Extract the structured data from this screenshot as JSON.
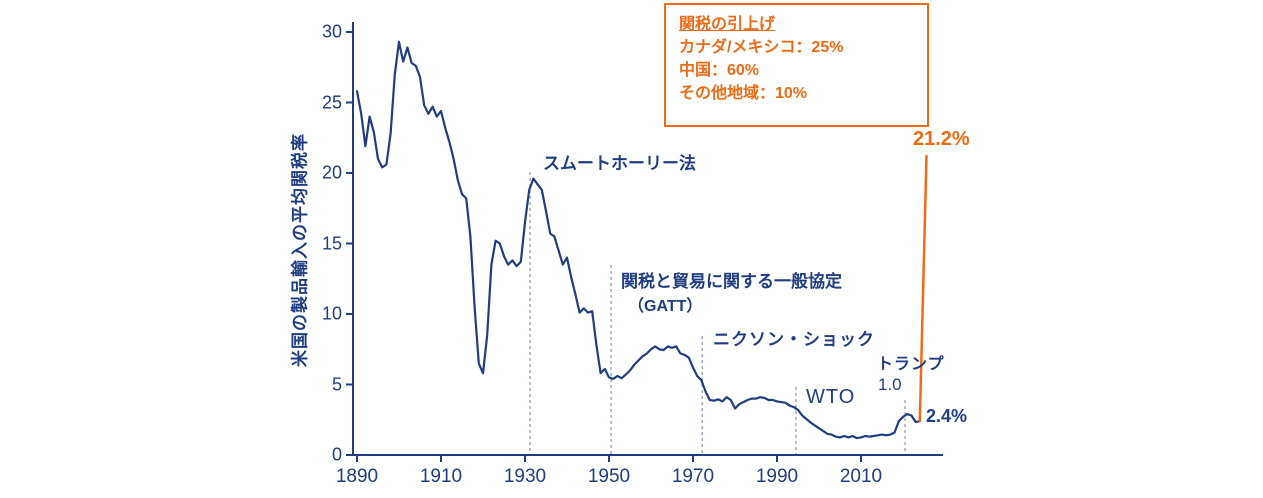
{
  "chart_data": {
    "type": "line",
    "title": "",
    "xlabel": "",
    "ylabel": "米国の製品輸入の平均関税率",
    "x_ticks": [
      "1890",
      "1910",
      "1930",
      "1950",
      "1970",
      "1990",
      "2010"
    ],
    "x_tick_years": [
      1890,
      1910,
      1930,
      1950,
      1970,
      1990,
      2010
    ],
    "y_ticks": [
      "0",
      "5",
      "10",
      "15",
      "20",
      "25",
      "30"
    ],
    "y_tick_values": [
      0,
      5,
      10,
      15,
      20,
      25,
      30
    ],
    "xlim": [
      1890,
      2026
    ],
    "ylim": [
      0,
      30
    ],
    "grid": false,
    "legend_position": "none",
    "series": [
      {
        "id": "historical-average-tariff-rate",
        "color": "#1F3D80",
        "points": [
          [
            1890,
            25.8
          ],
          [
            1891,
            24.2
          ],
          [
            1892,
            21.9
          ],
          [
            1893,
            24.0
          ],
          [
            1894,
            22.9
          ],
          [
            1895,
            21.0
          ],
          [
            1896,
            20.4
          ],
          [
            1897,
            20.6
          ],
          [
            1898,
            22.8
          ],
          [
            1899,
            27.0
          ],
          [
            1900,
            29.3
          ],
          [
            1901,
            27.9
          ],
          [
            1902,
            28.9
          ],
          [
            1903,
            27.8
          ],
          [
            1904,
            27.6
          ],
          [
            1905,
            26.8
          ],
          [
            1906,
            24.8
          ],
          [
            1907,
            24.2
          ],
          [
            1908,
            24.7
          ],
          [
            1909,
            24.0
          ],
          [
            1910,
            24.4
          ],
          [
            1911,
            23.2
          ],
          [
            1912,
            22.2
          ],
          [
            1913,
            21.0
          ],
          [
            1914,
            19.5
          ],
          [
            1915,
            18.5
          ],
          [
            1916,
            18.2
          ],
          [
            1917,
            15.5
          ],
          [
            1918,
            10.5
          ],
          [
            1919,
            6.5
          ],
          [
            1920,
            5.8
          ],
          [
            1921,
            8.5
          ],
          [
            1922,
            13.5
          ],
          [
            1923,
            15.2
          ],
          [
            1924,
            15.0
          ],
          [
            1925,
            14.1
          ],
          [
            1926,
            13.5
          ],
          [
            1927,
            13.8
          ],
          [
            1928,
            13.4
          ],
          [
            1929,
            13.7
          ],
          [
            1930,
            16.5
          ],
          [
            1931,
            18.8
          ],
          [
            1932,
            19.6
          ],
          [
            1933,
            19.2
          ],
          [
            1934,
            18.8
          ],
          [
            1935,
            17.3
          ],
          [
            1936,
            15.7
          ],
          [
            1937,
            15.5
          ],
          [
            1938,
            14.5
          ],
          [
            1939,
            13.5
          ],
          [
            1940,
            14.0
          ],
          [
            1941,
            12.6
          ],
          [
            1942,
            11.4
          ],
          [
            1943,
            10.1
          ],
          [
            1944,
            10.4
          ],
          [
            1945,
            10.1
          ],
          [
            1946,
            10.2
          ],
          [
            1947,
            7.8
          ],
          [
            1948,
            5.8
          ],
          [
            1949,
            6.1
          ],
          [
            1950,
            5.5
          ],
          [
            1951,
            5.4
          ],
          [
            1952,
            5.6
          ],
          [
            1953,
            5.45
          ],
          [
            1954,
            5.7
          ],
          [
            1955,
            6.0
          ],
          [
            1956,
            6.4
          ],
          [
            1957,
            6.7
          ],
          [
            1958,
            7.0
          ],
          [
            1959,
            7.2
          ],
          [
            1960,
            7.5
          ],
          [
            1961,
            7.7
          ],
          [
            1962,
            7.5
          ],
          [
            1963,
            7.45
          ],
          [
            1964,
            7.7
          ],
          [
            1965,
            7.6
          ],
          [
            1966,
            7.7
          ],
          [
            1967,
            7.2
          ],
          [
            1968,
            7.1
          ],
          [
            1969,
            6.9
          ],
          [
            1970,
            6.2
          ],
          [
            1971,
            5.6
          ],
          [
            1972,
            5.3
          ],
          [
            1973,
            4.5
          ],
          [
            1974,
            3.9
          ],
          [
            1975,
            3.85
          ],
          [
            1976,
            3.95
          ],
          [
            1977,
            3.8
          ],
          [
            1978,
            4.1
          ],
          [
            1979,
            3.9
          ],
          [
            1980,
            3.3
          ],
          [
            1981,
            3.6
          ],
          [
            1982,
            3.75
          ],
          [
            1983,
            3.9
          ],
          [
            1984,
            4.0
          ],
          [
            1985,
            4.0
          ],
          [
            1986,
            4.1
          ],
          [
            1987,
            4.05
          ],
          [
            1988,
            3.9
          ],
          [
            1989,
            3.9
          ],
          [
            1990,
            3.8
          ],
          [
            1991,
            3.75
          ],
          [
            1992,
            3.7
          ],
          [
            1993,
            3.5
          ],
          [
            1994,
            3.4
          ],
          [
            1995,
            3.2
          ],
          [
            1996,
            2.8
          ],
          [
            1997,
            2.55
          ],
          [
            1998,
            2.3
          ],
          [
            1999,
            2.1
          ],
          [
            2000,
            1.9
          ],
          [
            2001,
            1.7
          ],
          [
            2002,
            1.5
          ],
          [
            2003,
            1.45
          ],
          [
            2004,
            1.3
          ],
          [
            2005,
            1.25
          ],
          [
            2006,
            1.35
          ],
          [
            2007,
            1.25
          ],
          [
            2008,
            1.35
          ],
          [
            2009,
            1.2
          ],
          [
            2010,
            1.25
          ],
          [
            2011,
            1.35
          ],
          [
            2012,
            1.3
          ],
          [
            2013,
            1.35
          ],
          [
            2014,
            1.4
          ],
          [
            2015,
            1.45
          ],
          [
            2016,
            1.4
          ],
          [
            2017,
            1.45
          ],
          [
            2018,
            1.6
          ],
          [
            2019,
            2.4
          ],
          [
            2020,
            2.7
          ],
          [
            2021,
            2.9
          ],
          [
            2022,
            2.8
          ],
          [
            2023,
            2.35
          ],
          [
            2024,
            2.4
          ]
        ]
      },
      {
        "id": "projected-tariff-spike",
        "color": "#ED6B15",
        "points": [
          [
            2024,
            2.4
          ],
          [
            2025.6,
            21.2
          ]
        ]
      }
    ],
    "events": [
      {
        "label": "スムートホーリー法",
        "year": 1931.2
      },
      {
        "label": "関税と貿易に関する一般協定（GATT）",
        "year": 1950.5
      },
      {
        "label": "ニクソン・ショック",
        "year": 1972.2
      },
      {
        "label": "WTO",
        "year": 1994.5
      },
      {
        "label": "トランプ 1.0",
        "year": 2020.5
      }
    ]
  },
  "annotations": {
    "smoot_hawley": "スムートホーリー法",
    "gatt_line1": "関税と貿易に関する一般協定",
    "gatt_line2": "（GATT）",
    "nixon": "ニクソン・ショック",
    "wto": "WTO",
    "trump_line1": "トランプ",
    "trump_line2": "1.0",
    "value_current": "2.4%",
    "value_projected": "21.2%"
  },
  "callout": {
    "title": "関税の引上げ",
    "line_canada_mexico": "カナダ/メキシコ：25%",
    "line_china": "中国：60%",
    "line_other": "その他地域：10%"
  },
  "colors": {
    "navy": "#1F3D80",
    "orange": "#ED6B15",
    "dashed_guide": "#99A3C2"
  }
}
